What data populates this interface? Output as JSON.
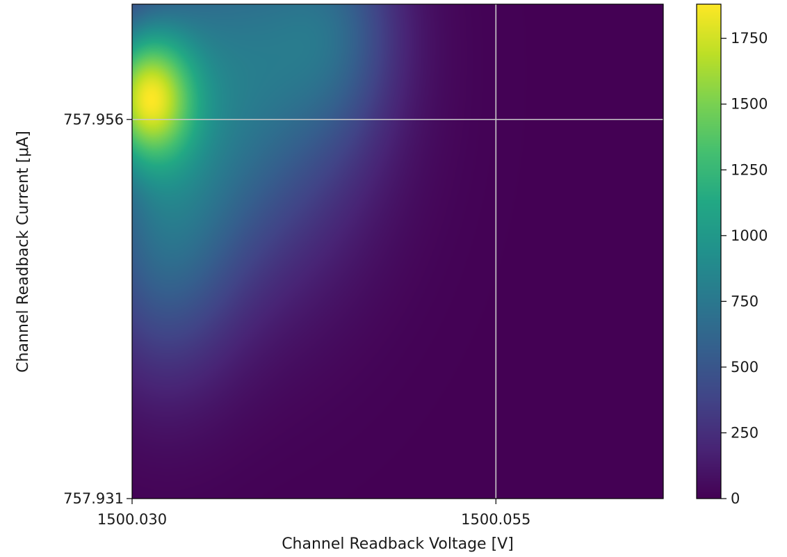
{
  "chart_data": {
    "type": "heatmap",
    "title": "",
    "xlabel": "Channel Readback Voltage [V]",
    "ylabel": "Channel Readback Current [μA]",
    "xlim": [
      1500.03,
      1500.0665
    ],
    "ylim": [
      757.931,
      757.9636
    ],
    "x_ticks": [
      {
        "value": 1500.03,
        "label": "1500.030"
      },
      {
        "value": 1500.055,
        "label": "1500.055"
      }
    ],
    "y_ticks": [
      {
        "value": 757.931,
        "label": "757.931"
      },
      {
        "value": 757.956,
        "label": "757.956"
      }
    ],
    "crosshair": {
      "x": 1500.055,
      "y": 757.956
    },
    "grid": false,
    "colormap": "viridis",
    "colorbar": {
      "range": [
        0,
        1880
      ],
      "ticks": [
        0,
        250,
        500,
        750,
        1000,
        1250,
        1500,
        1750
      ],
      "tick_labels": [
        "0",
        "250",
        "500",
        "750",
        "1000",
        "1250",
        "1500",
        "1750"
      ]
    },
    "density_components": [
      {
        "x": 1500.031,
        "y": 757.9575,
        "sx": 0.0022,
        "sy": 0.003,
        "amp": 1880
      },
      {
        "x": 1500.037,
        "y": 757.959,
        "sx": 0.006,
        "sy": 0.009,
        "amp": 1100
      },
      {
        "x": 1500.044,
        "y": 757.962,
        "sx": 0.003,
        "sy": 0.005,
        "amp": 500
      },
      {
        "x": 1500.032,
        "y": 757.948,
        "sx": 0.0035,
        "sy": 0.0065,
        "amp": 700
      }
    ]
  }
}
